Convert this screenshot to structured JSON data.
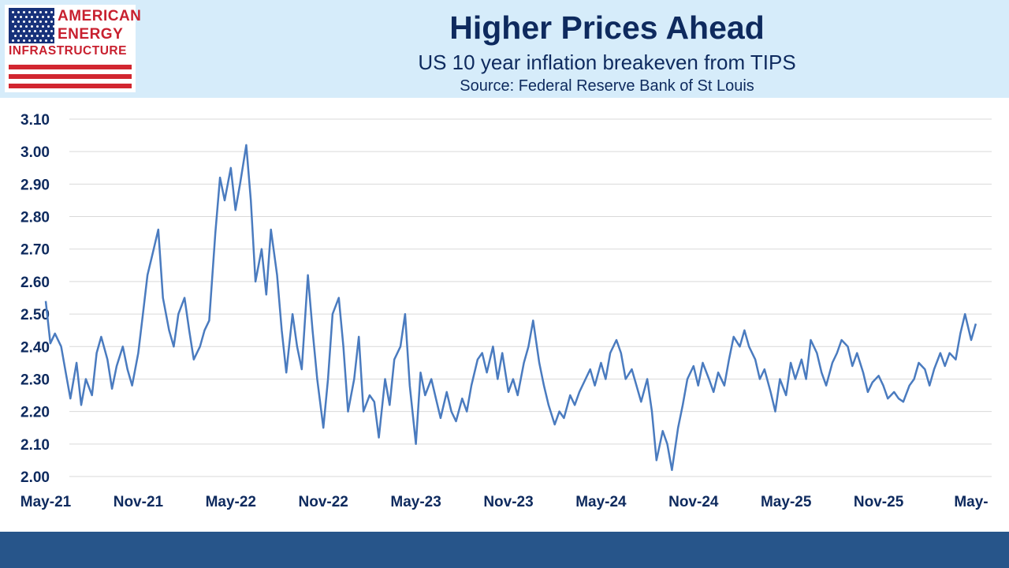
{
  "logo": {
    "line1": "AMERICAN",
    "line2": "ENERGY",
    "line3": "INFRASTRUCTURE"
  },
  "header": {
    "title": "Higher Prices Ahead",
    "subtitle": "US 10 year inflation breakeven from TIPS",
    "source": "Source: Federal Reserve Bank of St Louis"
  },
  "colors": {
    "line": "#4a7bbf",
    "header_bg": "#d6ecfa",
    "title": "#0e2a5e",
    "footer_bg": "#27558a",
    "logo_red": "#c8202f",
    "logo_blue": "#17317a"
  },
  "chart_data": {
    "type": "line",
    "title": "Higher Prices Ahead",
    "subtitle": "US 10 year inflation breakeven from TIPS",
    "xlabel": "",
    "ylabel": "",
    "ylim": [
      2.0,
      3.1
    ],
    "y_ticks": [
      "3.10",
      "3.00",
      "2.90",
      "2.80",
      "2.70",
      "2.60",
      "2.50",
      "2.40",
      "2.30",
      "2.20",
      "2.10",
      "2.00"
    ],
    "x_ticks": [
      "May-21",
      "Nov-21",
      "May-22",
      "Nov-22",
      "May-23",
      "Nov-23",
      "May-24",
      "Nov-24",
      "May-25",
      "Nov-25",
      "May-"
    ],
    "grid": "horizontal",
    "x_unit": "months from May-21",
    "series": [
      {
        "x": [
          0,
          0.3,
          0.6,
          1,
          1.3,
          1.6,
          2,
          2.3,
          2.6,
          3,
          3.3,
          3.6,
          4,
          4.3,
          4.6,
          5,
          5.3,
          5.6,
          6,
          6.3,
          6.6,
          7,
          7.3,
          7.6,
          8,
          8.3,
          8.6,
          9,
          9.3,
          9.6,
          10,
          10.3,
          10.6,
          11,
          11.3,
          11.6,
          12,
          12.3,
          12.6,
          13,
          13.3,
          13.6,
          14,
          14.3,
          14.6,
          15,
          15.3,
          15.6,
          16,
          16.3,
          16.6,
          17,
          17.3,
          17.6,
          18,
          18.3,
          18.6,
          19,
          19.3,
          19.6,
          20,
          20.3,
          20.6,
          21,
          21.3,
          21.6,
          22,
          22.3,
          22.6,
          23,
          23.3,
          23.6,
          24,
          24.3,
          24.6,
          25,
          25.3,
          25.6,
          26,
          26.3,
          26.6,
          27,
          27.3,
          27.6,
          28,
          28.3,
          28.6,
          29,
          29.3,
          29.6,
          30,
          30.3,
          30.6,
          31,
          31.3,
          31.6,
          32,
          32.3,
          32.6,
          33,
          33.3,
          33.6,
          34,
          34.3,
          34.6,
          35,
          35.3,
          35.6,
          36,
          36.3,
          36.6,
          37,
          37.3,
          37.6,
          38,
          38.3,
          38.6,
          39,
          39.3,
          39.6,
          40,
          40.3,
          40.6,
          41,
          41.3,
          41.6,
          42,
          42.3,
          42.6,
          43,
          43.3,
          43.6,
          44,
          44.3,
          44.6,
          45,
          45.3,
          45.6,
          46,
          46.3,
          46.6,
          47,
          47.3,
          47.6,
          48,
          48.3,
          48.6,
          49,
          49.3,
          49.6,
          50,
          50.3,
          50.6,
          51,
          51.3,
          51.6,
          52,
          52.3,
          52.6,
          53,
          53.3,
          53.6,
          54,
          54.3,
          54.6,
          55,
          55.3,
          55.6,
          56,
          56.3,
          56.6,
          57,
          57.3,
          57.6,
          58,
          58.3,
          58.6,
          59,
          59.3,
          59.6,
          60,
          60.3
        ],
        "values": [
          2.54,
          2.41,
          2.44,
          2.4,
          2.32,
          2.24,
          2.35,
          2.22,
          2.3,
          2.25,
          2.38,
          2.43,
          2.36,
          2.27,
          2.34,
          2.4,
          2.33,
          2.28,
          2.38,
          2.5,
          2.62,
          2.7,
          2.76,
          2.55,
          2.45,
          2.4,
          2.5,
          2.55,
          2.45,
          2.36,
          2.4,
          2.45,
          2.48,
          2.75,
          2.92,
          2.85,
          2.95,
          2.82,
          2.9,
          3.02,
          2.85,
          2.6,
          2.7,
          2.56,
          2.76,
          2.62,
          2.45,
          2.32,
          2.5,
          2.4,
          2.33,
          2.62,
          2.45,
          2.3,
          2.15,
          2.3,
          2.5,
          2.55,
          2.4,
          2.2,
          2.3,
          2.43,
          2.2,
          2.25,
          2.23,
          2.12,
          2.3,
          2.22,
          2.36,
          2.4,
          2.5,
          2.28,
          2.1,
          2.32,
          2.25,
          2.3,
          2.24,
          2.18,
          2.26,
          2.2,
          2.17,
          2.24,
          2.2,
          2.28,
          2.36,
          2.38,
          2.32,
          2.4,
          2.3,
          2.38,
          2.26,
          2.3,
          2.25,
          2.35,
          2.4,
          2.48,
          2.35,
          2.28,
          2.22,
          2.16,
          2.2,
          2.18,
          2.25,
          2.22,
          2.26,
          2.3,
          2.33,
          2.28,
          2.35,
          2.3,
          2.38,
          2.42,
          2.38,
          2.3,
          2.33,
          2.28,
          2.23,
          2.3,
          2.2,
          2.05,
          2.14,
          2.1,
          2.02,
          2.15,
          2.22,
          2.3,
          2.34,
          2.28,
          2.35,
          2.3,
          2.26,
          2.32,
          2.28,
          2.36,
          2.43,
          2.4,
          2.45,
          2.4,
          2.36,
          2.3,
          2.33,
          2.26,
          2.2,
          2.3,
          2.25,
          2.35,
          2.3,
          2.36,
          2.3,
          2.42,
          2.38,
          2.32,
          2.28,
          2.35,
          2.38,
          2.42,
          2.4,
          2.34,
          2.38,
          2.32,
          2.26,
          2.29,
          2.31,
          2.28,
          2.24,
          2.26,
          2.24,
          2.23,
          2.28,
          2.3,
          2.35,
          2.33,
          2.28,
          2.33,
          2.38,
          2.34,
          2.38,
          2.36,
          2.44,
          2.5,
          2.42,
          2.47
        ]
      }
    ]
  }
}
